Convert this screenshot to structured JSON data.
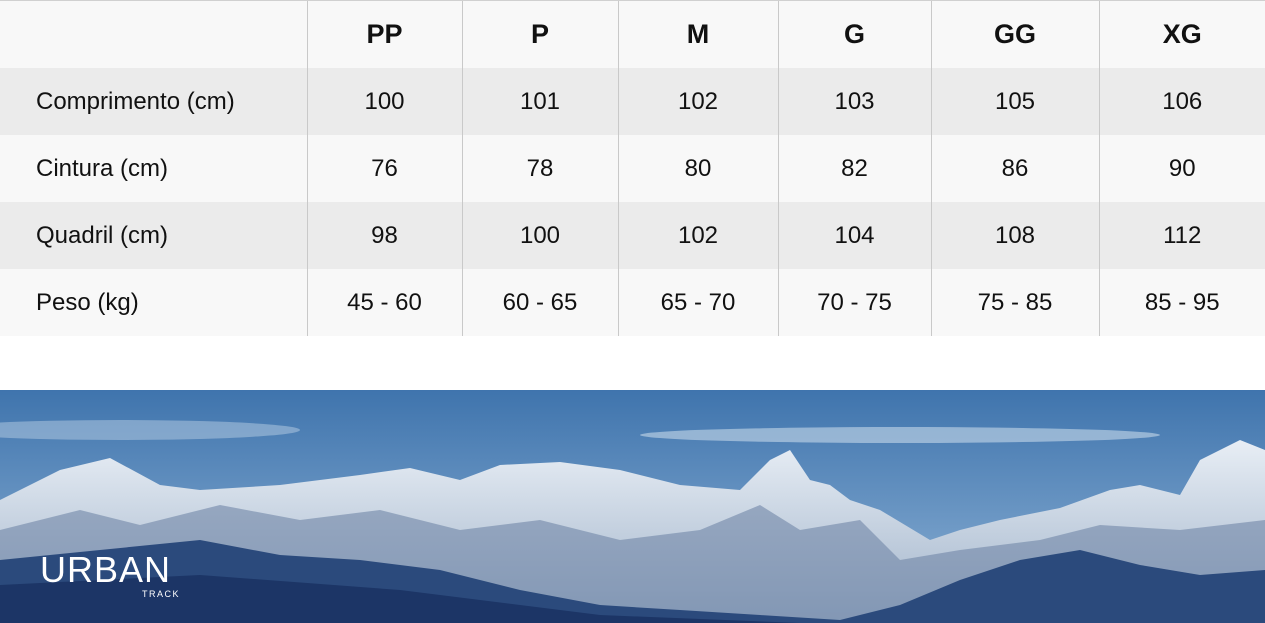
{
  "size_table": {
    "columns": [
      "PP",
      "P",
      "M",
      "G",
      "GG",
      "XG"
    ],
    "rows": [
      {
        "label": "Comprimento (cm)",
        "values": [
          "100",
          "101",
          "102",
          "103",
          "105",
          "106"
        ]
      },
      {
        "label": "Cintura (cm)",
        "values": [
          "76",
          "78",
          "80",
          "82",
          "86",
          "90"
        ]
      },
      {
        "label": "Quadril (cm)",
        "values": [
          "98",
          "100",
          "102",
          "104",
          "108",
          "112"
        ]
      },
      {
        "label": "Peso (kg)",
        "values": [
          "45 - 60",
          "60 - 65",
          "65 - 70",
          "70 - 75",
          "75 - 85",
          "85 - 95"
        ]
      }
    ]
  },
  "banner": {
    "logo_main": "URBAN",
    "logo_sub": "TRACK",
    "colors": {
      "sky": "#4f7fb5",
      "mountain": "#1f3e70"
    }
  }
}
